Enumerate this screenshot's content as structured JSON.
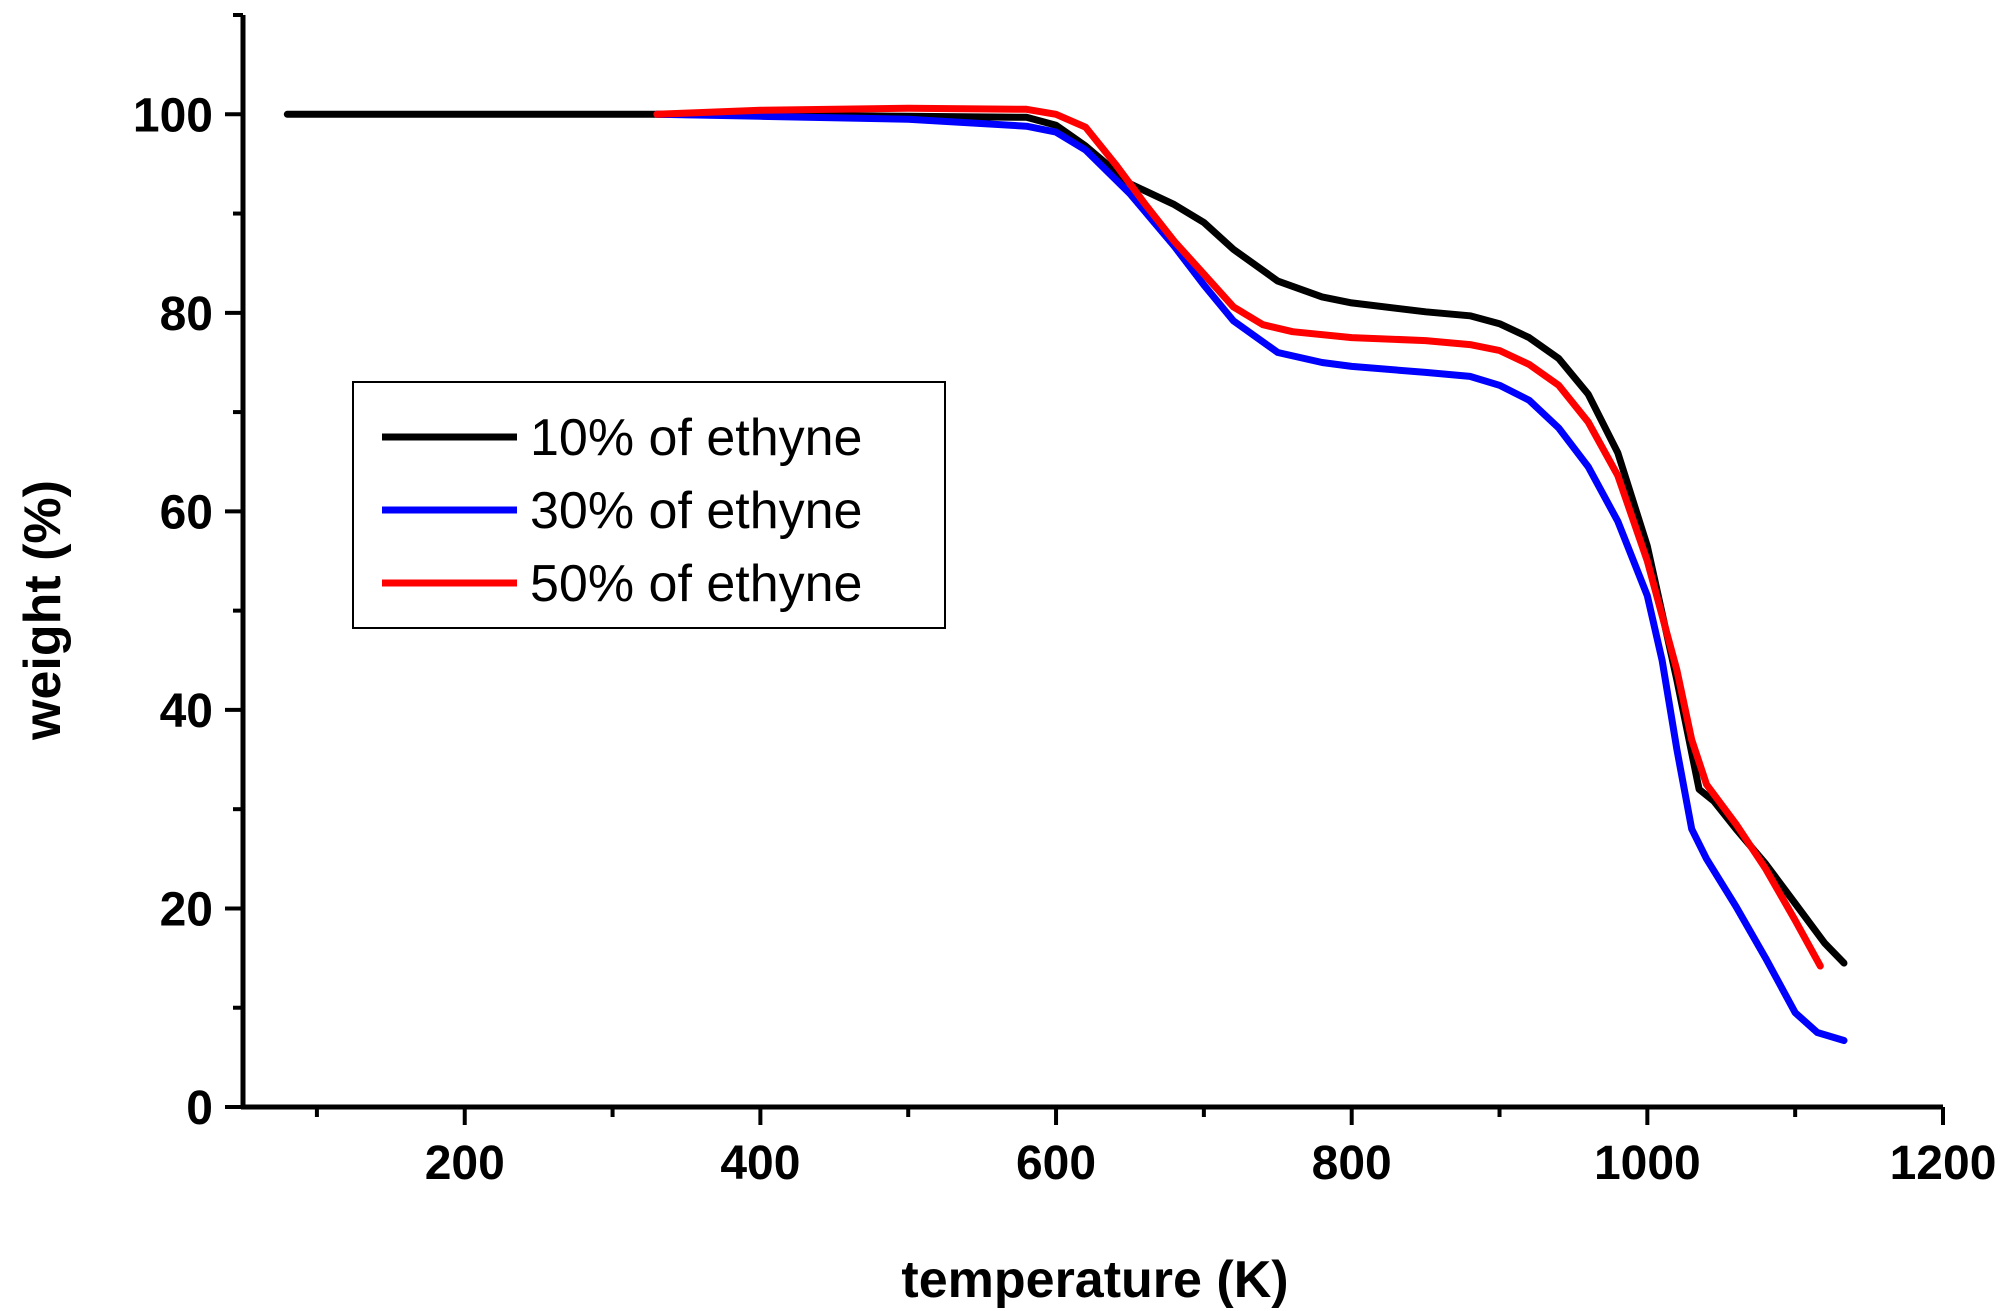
{
  "chart_data": {
    "type": "line",
    "title": "",
    "xlabel": "temperature (K)",
    "ylabel": "weight (%)",
    "xlim": [
      50,
      1200
    ],
    "ylim": [
      0,
      110
    ],
    "xticks": [
      200,
      400,
      600,
      800,
      1000,
      1200
    ],
    "xticks_minor": [
      100,
      300,
      500,
      700,
      900,
      1100
    ],
    "yticks": [
      0,
      20,
      40,
      60,
      80,
      100
    ],
    "yticks_minor": [
      10,
      30,
      50,
      70,
      90,
      110
    ],
    "grid": false,
    "legend_position": "left-middle",
    "series": [
      {
        "name": "10% of ethyne",
        "color": "#000000",
        "x": [
          80,
          200,
          330,
          400,
          500,
          580,
          600,
          620,
          650,
          680,
          700,
          720,
          750,
          780,
          800,
          850,
          880,
          900,
          920,
          940,
          960,
          980,
          1000,
          1020,
          1035,
          1045,
          1060,
          1080,
          1100,
          1120,
          1133
        ],
        "y": [
          100,
          100,
          100,
          99.9,
          99.8,
          99.7,
          98.9,
          96.8,
          93.0,
          90.9,
          89.1,
          86.4,
          83.2,
          81.6,
          81.0,
          80.1,
          79.7,
          78.9,
          77.5,
          75.4,
          71.8,
          65.9,
          56.5,
          43.0,
          32.0,
          30.8,
          28.0,
          24.5,
          20.5,
          16.5,
          14.5
        ]
      },
      {
        "name": "30% of ethyne",
        "color": "#0000ff",
        "x": [
          330,
          400,
          500,
          580,
          600,
          620,
          650,
          680,
          700,
          720,
          750,
          780,
          800,
          850,
          880,
          900,
          920,
          940,
          960,
          980,
          1000,
          1010,
          1020,
          1030,
          1040,
          1060,
          1080,
          1100,
          1115,
          1133
        ],
        "y": [
          100,
          99.8,
          99.5,
          98.8,
          98.2,
          96.4,
          92.0,
          86.7,
          82.8,
          79.2,
          76.0,
          75.0,
          74.6,
          74.0,
          73.6,
          72.7,
          71.2,
          68.4,
          64.5,
          59.0,
          51.5,
          45.0,
          36.0,
          28.0,
          25.0,
          20.2,
          15.0,
          9.5,
          7.5,
          6.7
        ]
      },
      {
        "name": "50% of ethyne",
        "color": "#ff0000",
        "x": [
          330,
          400,
          500,
          580,
          600,
          620,
          640,
          660,
          680,
          700,
          720,
          740,
          760,
          800,
          850,
          880,
          900,
          920,
          940,
          960,
          980,
          1000,
          1020,
          1030,
          1040,
          1060,
          1080,
          1100,
          1117
        ],
        "y": [
          100,
          100.4,
          100.6,
          100.5,
          100.0,
          98.7,
          95.0,
          91.0,
          87.2,
          83.9,
          80.6,
          78.8,
          78.1,
          77.5,
          77.2,
          76.8,
          76.2,
          74.8,
          72.7,
          69.0,
          63.6,
          55.0,
          44.0,
          37.0,
          32.5,
          28.5,
          24.0,
          18.8,
          14.2
        ]
      }
    ]
  }
}
